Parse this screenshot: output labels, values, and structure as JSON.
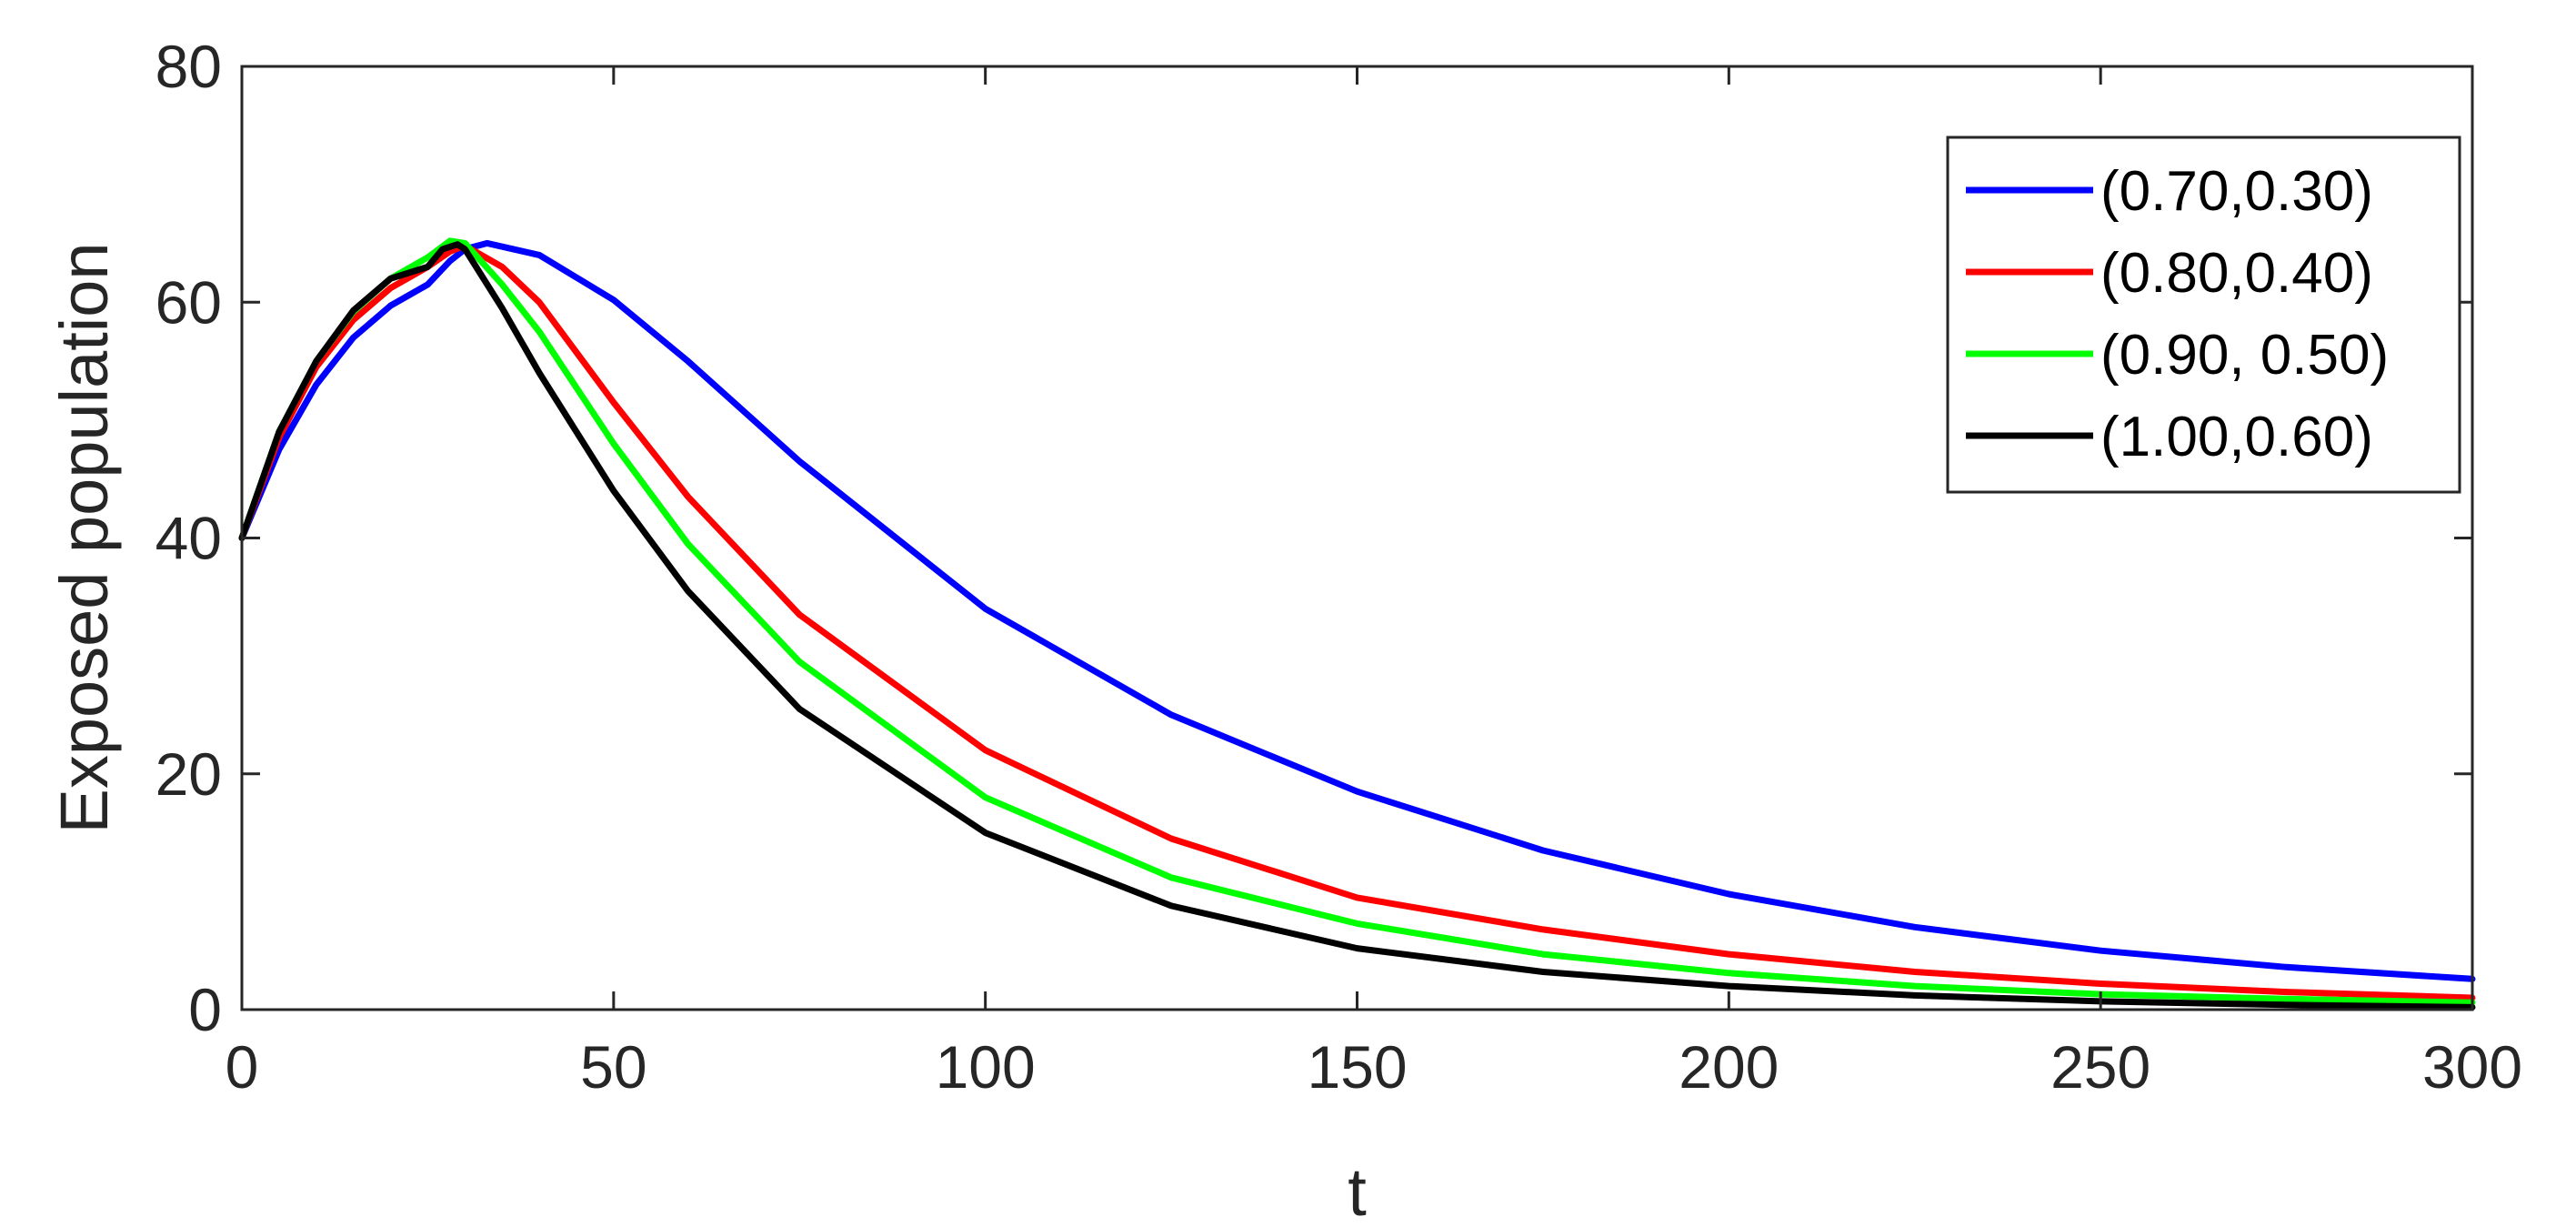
{
  "chart_data": {
    "type": "line",
    "xlabel": "t",
    "ylabel": "Exposed population",
    "xlim": [
      0,
      300
    ],
    "ylim": [
      0,
      80
    ],
    "xticks": [
      0,
      50,
      100,
      150,
      200,
      250,
      300
    ],
    "yticks": [
      0,
      20,
      40,
      60,
      80
    ],
    "grid": false,
    "legend_position": "top-right",
    "series": [
      {
        "name": "(0.70,0.30)",
        "color": "#0000ff",
        "x": [
          0,
          5,
          10,
          15,
          20,
          25,
          28,
          30,
          33,
          40,
          50,
          60,
          75,
          100,
          125,
          150,
          175,
          200,
          225,
          250,
          275,
          300
        ],
        "y": [
          40,
          47.5,
          53,
          57,
          59.7,
          61.5,
          63.5,
          64.5,
          65,
          64,
          60.2,
          55,
          46.5,
          34,
          25,
          18.5,
          13.5,
          9.8,
          7,
          5,
          3.6,
          2.6
        ]
      },
      {
        "name": "(0.80,0.40)",
        "color": "#ff0000",
        "x": [
          0,
          5,
          10,
          15,
          20,
          25,
          28,
          30,
          35,
          40,
          50,
          60,
          75,
          100,
          125,
          150,
          175,
          200,
          225,
          250,
          275,
          300
        ],
        "y": [
          40,
          48.5,
          54.5,
          58.5,
          61.2,
          63,
          64.3,
          64.8,
          63,
          60,
          51.5,
          43.5,
          33.5,
          22,
          14.5,
          9.5,
          6.8,
          4.7,
          3.2,
          2.2,
          1.5,
          1
        ]
      },
      {
        "name": "(0.90, 0.50)",
        "color": "#00ff00",
        "x": [
          0,
          5,
          10,
          15,
          20,
          25,
          28,
          30,
          35,
          40,
          50,
          60,
          75,
          100,
          125,
          150,
          175,
          200,
          225,
          250,
          275,
          300
        ],
        "y": [
          40,
          49,
          55,
          59.2,
          62,
          63.8,
          65.2,
          65,
          61.5,
          57.5,
          48,
          39.5,
          29.5,
          18,
          11.2,
          7.3,
          4.7,
          3.1,
          2,
          1.3,
          0.9,
          0.6
        ]
      },
      {
        "name": "(1.00,0.60)",
        "color": "#000000",
        "x": [
          0,
          5,
          10,
          15,
          20,
          25,
          27,
          29,
          30,
          35,
          40,
          50,
          60,
          75,
          100,
          125,
          150,
          175,
          200,
          225,
          250,
          275,
          300
        ],
        "y": [
          40,
          49,
          55,
          59.3,
          62,
          63,
          64.5,
          64.9,
          64.5,
          59.5,
          54,
          44,
          35.5,
          25.5,
          15,
          8.8,
          5.2,
          3.2,
          2,
          1.2,
          0.7,
          0.4,
          0.2
        ]
      }
    ]
  }
}
